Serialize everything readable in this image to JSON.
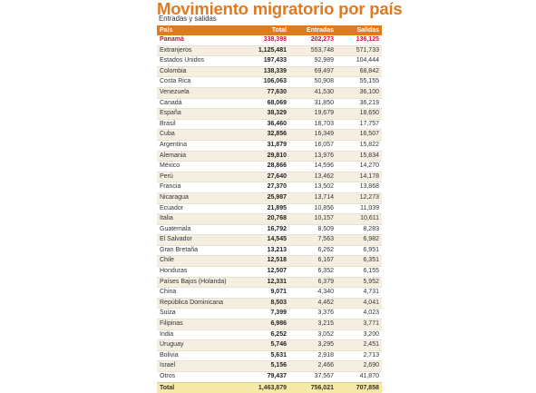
{
  "title": "Movimiento migratorio por país",
  "subtitle": "Entradas y salidas",
  "colors": {
    "accent": "#e07a1f",
    "highlight": "#c8102e",
    "total_row": "#f7e9a6"
  },
  "columns": [
    "País",
    "Total",
    "Entradas",
    "Salidas"
  ],
  "highlight_row": "Panamá",
  "rows": [
    [
      "Panamá",
      "338,398",
      "202,273",
      "136,125"
    ],
    [
      "Extranjeros",
      "1,125,481",
      "553,748",
      "571,733"
    ],
    [
      "Estados Unidos",
      "197,433",
      "92,989",
      "104,444"
    ],
    [
      "Colombia",
      "138,339",
      "69,497",
      "68,842"
    ],
    [
      "Costa Rica",
      "106,063",
      "50,908",
      "55,155"
    ],
    [
      "Venezuela",
      "77,630",
      "41,530",
      "36,100"
    ],
    [
      "Canadá",
      "68,069",
      "31,850",
      "36,219"
    ],
    [
      "España",
      "38,329",
      "19,679",
      "18,650"
    ],
    [
      "Brasil",
      "36,460",
      "18,703",
      "17,757"
    ],
    [
      "Cuba",
      "32,856",
      "16,349",
      "16,507"
    ],
    [
      "Argentina",
      "31,879",
      "16,057",
      "15,822"
    ],
    [
      "Alemania",
      "29,810",
      "13,976",
      "15,834"
    ],
    [
      "México",
      "28,866",
      "14,596",
      "14,270"
    ],
    [
      "Perú",
      "27,640",
      "13,462",
      "14,178"
    ],
    [
      "Francia",
      "27,370",
      "13,502",
      "13,868"
    ],
    [
      "Nicaragua",
      "25,987",
      "13,714",
      "12,273"
    ],
    [
      "Ecuador",
      "21,895",
      "10,856",
      "11,039"
    ],
    [
      "Italia",
      "20,768",
      "10,157",
      "10,611"
    ],
    [
      "Guatemala",
      "16,792",
      "8,509",
      "8,283"
    ],
    [
      "El Salvador",
      "14,545",
      "7,563",
      "6,982"
    ],
    [
      "Gran Bretaña",
      "13,213",
      "6,262",
      "6,951"
    ],
    [
      "Chile",
      "12,518",
      "6,167",
      "6,351"
    ],
    [
      "Honduras",
      "12,507",
      "6,352",
      "6,155"
    ],
    [
      "Países Bajos (Holanda)",
      "12,331",
      "6,379",
      "5,952"
    ],
    [
      "China",
      "9,071",
      "4,340",
      "4,731"
    ],
    [
      "República Dominicana",
      "8,503",
      "4,462",
      "4,041"
    ],
    [
      "Suiza",
      "7,399",
      "3,376",
      "4,023"
    ],
    [
      "Filipinas",
      "6,986",
      "3,215",
      "3,771"
    ],
    [
      "India",
      "6,252",
      "3,052",
      "3,200"
    ],
    [
      "Uruguay",
      "5,746",
      "3,295",
      "2,451"
    ],
    [
      "Bolivia",
      "5,631",
      "2,918",
      "2,713"
    ],
    [
      "Israel",
      "5,156",
      "2,466",
      "2,690"
    ],
    [
      "Otros",
      "79,437",
      "37,567",
      "41,870"
    ]
  ],
  "total_row": [
    "Total",
    "1,463,879",
    "756,021",
    "707,858"
  ]
}
